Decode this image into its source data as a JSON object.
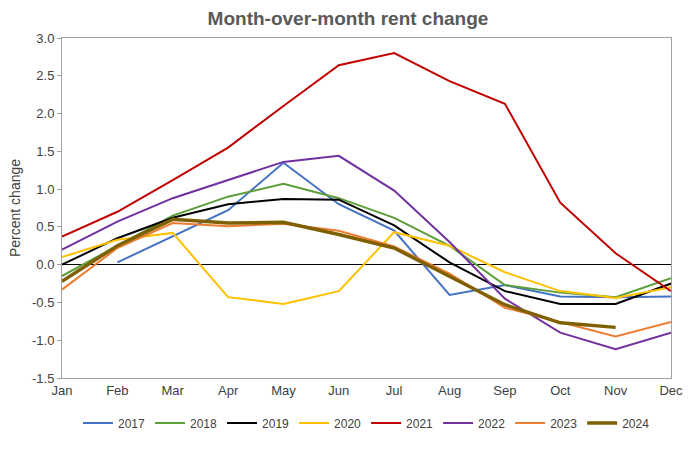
{
  "chart_data": {
    "type": "line",
    "title": "Month-over-month rent change",
    "y_label": "Percent change",
    "categories": [
      "Jan",
      "Feb",
      "Mar",
      "Apr",
      "May",
      "Jun",
      "Jul",
      "Aug",
      "Sep",
      "Oct",
      "Nov",
      "Dec"
    ],
    "ylim": [
      -1.5,
      3.0
    ],
    "yticks": [
      -1.5,
      {
        "value": -1.0,
        "label": "-1.0"
      },
      -0.5,
      {
        "value": 0,
        "label": "0.0"
      },
      0.5,
      {
        "value": 1.0,
        "label": "1.0"
      },
      1.5,
      {
        "value": 2.0,
        "label": "2.0"
      },
      2.5,
      {
        "value": 3.0,
        "label": "3.0"
      }
    ],
    "grid": false,
    "legend": "bottom",
    "series": [
      {
        "name": "2017",
        "color": "#4472c4",
        "values": [
          null,
          0.03,
          0.38,
          0.72,
          1.35,
          0.8,
          0.45,
          -0.4,
          -0.27,
          -0.42,
          -0.43,
          -0.42
        ]
      },
      {
        "name": "2018",
        "color": "#5b9e3a",
        "values": [
          -0.15,
          0.25,
          0.65,
          0.9,
          1.07,
          0.88,
          0.62,
          0.25,
          -0.27,
          -0.37,
          -0.43,
          -0.18
        ]
      },
      {
        "name": "2019",
        "color": "#000000",
        "values": [
          0.0,
          0.35,
          0.62,
          0.8,
          0.87,
          0.86,
          0.52,
          0.03,
          -0.35,
          -0.52,
          -0.52,
          -0.25
        ]
      },
      {
        "name": "2020",
        "color": "#ffc000",
        "values": [
          0.1,
          0.33,
          0.42,
          -0.43,
          -0.52,
          -0.35,
          0.43,
          0.25,
          -0.1,
          -0.35,
          -0.44,
          -0.3
        ]
      },
      {
        "name": "2021",
        "color": "#c00000",
        "values": [
          0.37,
          0.7,
          1.12,
          1.55,
          2.1,
          2.64,
          2.8,
          2.43,
          2.13,
          0.82,
          0.15,
          -0.35
        ]
      },
      {
        "name": "2022",
        "color": "#7030a0",
        "values": [
          0.2,
          0.57,
          0.88,
          1.12,
          1.36,
          1.44,
          0.98,
          0.3,
          -0.45,
          -0.9,
          -1.12,
          -0.9
        ]
      },
      {
        "name": "2023",
        "color": "#ed7d31",
        "values": [
          -0.33,
          0.22,
          0.55,
          0.51,
          0.54,
          0.45,
          0.24,
          -0.12,
          -0.57,
          -0.76,
          -0.95,
          -0.76
        ]
      },
      {
        "name": "2024",
        "color": "#7f6000",
        "values": [
          -0.22,
          0.25,
          0.6,
          0.55,
          0.56,
          0.4,
          0.22,
          -0.15,
          -0.53,
          -0.77,
          -0.83,
          null
        ]
      }
    ]
  }
}
